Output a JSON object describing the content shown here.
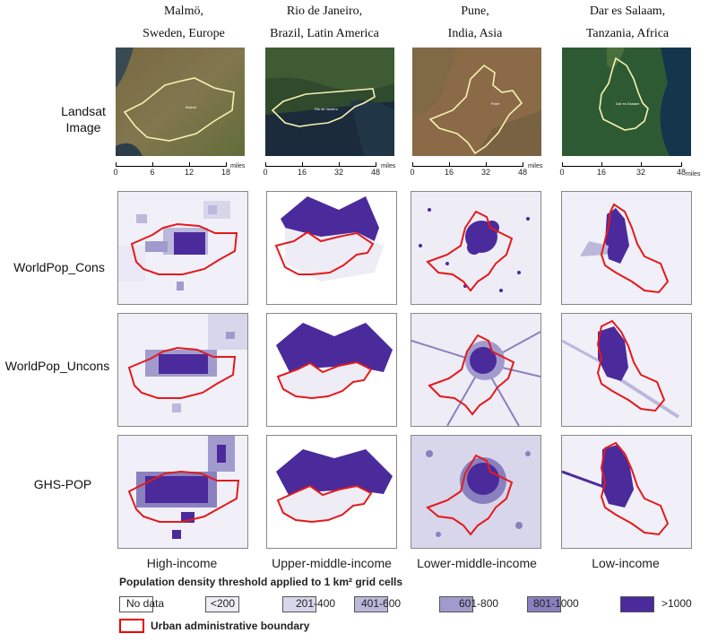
{
  "columns": [
    {
      "city": "Malmö,",
      "region": "Sweden, Europe",
      "income": "High-income",
      "scale": {
        "ticks": [
          "0",
          "6",
          "12",
          "18"
        ],
        "unit": "miles"
      },
      "city_label": "Malmö"
    },
    {
      "city": "Rio de Janeiro,",
      "region": "Brazil, Latin America",
      "income": "Upper-middle-income",
      "scale": {
        "ticks": [
          "0",
          "16",
          "32",
          "48"
        ],
        "unit": "miles"
      },
      "city_label": "Rio de Janeiro"
    },
    {
      "city": "Pune,",
      "region": "India, Asia",
      "income": "Lower-middle-income",
      "scale": {
        "ticks": [
          "0",
          "16",
          "32",
          "48"
        ],
        "unit": "miles"
      },
      "city_label": "Pune"
    },
    {
      "city": "Dar es Salaam,",
      "region": "Tanzania, Africa",
      "income": "Low-income",
      "scale": {
        "ticks": [
          "0",
          "16",
          "32",
          "48"
        ],
        "unit": "miles"
      },
      "city_label": "Dar es Salaam"
    }
  ],
  "rows": {
    "landsat": "Landsat Image",
    "worldpop_cons": "WorldPop_Cons",
    "worldpop_uncons": "WorldPop_Uncons",
    "ghs_pop": "GHS-POP"
  },
  "legend": {
    "title": "Population density threshold applied to 1 km² grid cells",
    "classes": [
      {
        "label": "No data",
        "color": "#ffffff"
      },
      {
        "label": "<200",
        "color": "#eeedf6"
      },
      {
        "label": "201-400",
        "color": "#d8d6ea"
      },
      {
        "label": "401-600",
        "color": "#bcb8dc"
      },
      {
        "label": "601-800",
        "color": "#a19bcd"
      },
      {
        "label": "801-1000",
        "color": "#8a80bf"
      },
      {
        "label": ">1000",
        "color": "#4b2a9c"
      }
    ],
    "boundary_label": "Urban administrative boundary",
    "boundary_color": "#e31a1c"
  }
}
